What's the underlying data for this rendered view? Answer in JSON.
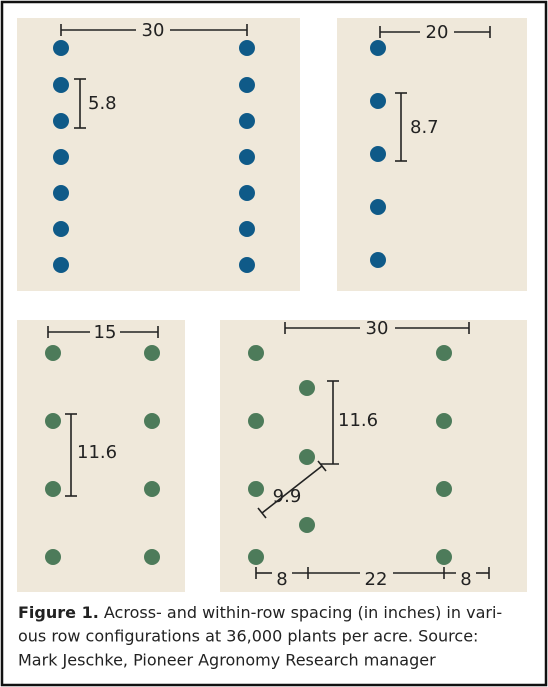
{
  "panels": [
    {
      "across": "30",
      "within": "5.8"
    },
    {
      "across": "20",
      "within": "8.7"
    },
    {
      "across": "15",
      "within": "11.6"
    },
    {
      "across": "30",
      "within": "11.6",
      "diagonal": "9.9",
      "bottom": [
        "8",
        "22",
        "8"
      ]
    }
  ],
  "caption": {
    "label": "Figure 1.",
    "lines": [
      "Across- and within-row spacing (in inches) in vari-",
      "ous row configurations at 36,000 plants per acre. Source:",
      "Mark Jeschke, Pioneer Agronomy Research manager"
    ]
  }
}
